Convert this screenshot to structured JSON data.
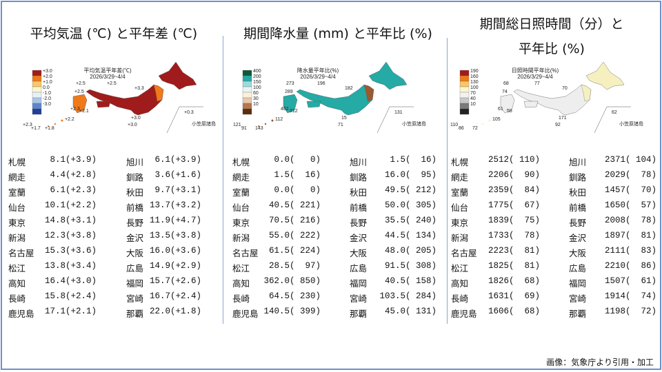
{
  "panels": [
    {
      "title_lines": [
        "平均気温 (℃) と平年差 (℃)"
      ],
      "map": {
        "title": "平均気温平年差(℃)",
        "period": "2026/3/29~4/4",
        "legend": [
          {
            "label": "+3.0",
            "color": "#a01c1c"
          },
          {
            "label": "+2.0",
            "color": "#ef7a1a"
          },
          {
            "label": "+1.0",
            "color": "#f7c86a"
          },
          {
            "label": "0.0",
            "color": "#fbf5cc"
          },
          {
            "label": "-1.0",
            "color": "#e6f0fa"
          },
          {
            "label": "-2.0",
            "color": "#a9c6ea"
          },
          {
            "label": "-3.0",
            "color": "#5b86cf"
          },
          {
            "label": "",
            "color": "#1f3f9a"
          }
        ],
        "main_color": "#a01c1c",
        "accent_color": "#ef7a1a",
        "station_labels": [
          "+2.5",
          "+2.5",
          "+3.3",
          "+2.5",
          "+2.3",
          "+2.1",
          "+2.2",
          "+3.0",
          "+3.0",
          "+2.3",
          "+1.7",
          "+1.8",
          "+0.3"
        ],
        "islands_label": "小笠原諸島"
      },
      "rows": [
        {
          "left": {
            "name": "札幌",
            "value": " 8.1(+3.9)"
          },
          "right": {
            "name": "旭川",
            "value": " 6.1(+3.9)"
          }
        },
        {
          "left": {
            "name": "網走",
            "value": " 4.4(+2.8)"
          },
          "right": {
            "name": "釧路",
            "value": " 3.6(+1.6)"
          }
        },
        {
          "left": {
            "name": "室蘭",
            "value": " 6.1(+2.3)"
          },
          "right": {
            "name": "秋田",
            "value": " 9.7(+3.1)"
          }
        },
        {
          "left": {
            "name": "仙台",
            "value": "10.1(+2.2)"
          },
          "right": {
            "name": "前橋",
            "value": "13.7(+3.2)"
          }
        },
        {
          "left": {
            "name": "東京",
            "value": "14.8(+3.1)"
          },
          "right": {
            "name": "長野",
            "value": "11.9(+4.7)"
          }
        },
        {
          "left": {
            "name": "新潟",
            "value": "12.3(+3.8)"
          },
          "right": {
            "name": "金沢",
            "value": "13.5(+3.8)"
          }
        },
        {
          "left": {
            "name": "名古屋",
            "value": "15.3(+3.6)"
          },
          "right": {
            "name": "大阪",
            "value": "16.0(+3.6)"
          }
        },
        {
          "left": {
            "name": "松江",
            "value": "13.8(+3.4)"
          },
          "right": {
            "name": "広島",
            "value": "14.9(+2.9)"
          }
        },
        {
          "left": {
            "name": "高知",
            "value": "16.4(+3.0)"
          },
          "right": {
            "name": "福岡",
            "value": "15.7(+2.6)"
          }
        },
        {
          "left": {
            "name": "長崎",
            "value": "15.8(+2.4)"
          },
          "right": {
            "name": "宮崎",
            "value": "16.7(+2.4)"
          }
        },
        {
          "left": {
            "name": "鹿児島",
            "value": "17.1(+2.1)"
          },
          "right": {
            "name": "那覇",
            "value": "22.0(+1.8)"
          }
        }
      ]
    },
    {
      "title_lines": [
        "期間降水量 (mm) と平年比 (%)"
      ],
      "map": {
        "title": "降水量平年比(%)",
        "period": "2026/3/29~4/4",
        "legend": [
          {
            "label": "400",
            "color": "#0d5a36"
          },
          {
            "label": "200",
            "color": "#25aaa5"
          },
          {
            "label": "150",
            "color": "#9fdada"
          },
          {
            "label": "100",
            "color": "#e6f4f4"
          },
          {
            "label": "60",
            "color": "#fbf1d6"
          },
          {
            "label": "30",
            "color": "#e8c8ae"
          },
          {
            "label": "10",
            "color": "#b8764a"
          },
          {
            "label": "",
            "color": "#5a2d10"
          }
        ],
        "main_color": "#25aaa5",
        "accent_color": "#9a5a30",
        "station_labels": [
          "273",
          "196",
          "182",
          "289",
          "482",
          "312",
          "112",
          "15",
          "71",
          "121",
          "91",
          "143",
          "131"
        ],
        "islands_label": "小笠原諸島"
      },
      "rows": [
        {
          "left": {
            "name": "札幌",
            "value": "  0.0(   0)"
          },
          "right": {
            "name": "旭川",
            "value": "  1.5(  16)"
          }
        },
        {
          "left": {
            "name": "網走",
            "value": "  1.5(  16)"
          },
          "right": {
            "name": "釧路",
            "value": " 16.0(  95)"
          }
        },
        {
          "left": {
            "name": "室蘭",
            "value": "  0.0(   0)"
          },
          "right": {
            "name": "秋田",
            "value": " 49.5( 212)"
          }
        },
        {
          "left": {
            "name": "仙台",
            "value": " 40.5( 221)"
          },
          "right": {
            "name": "前橋",
            "value": " 50.0( 305)"
          }
        },
        {
          "left": {
            "name": "東京",
            "value": " 70.5( 216)"
          },
          "right": {
            "name": "長野",
            "value": " 35.5( 240)"
          }
        },
        {
          "left": {
            "name": "新潟",
            "value": " 55.0( 222)"
          },
          "right": {
            "name": "金沢",
            "value": " 44.5( 134)"
          }
        },
        {
          "left": {
            "name": "名古屋",
            "value": " 61.5( 224)"
          },
          "right": {
            "name": "大阪",
            "value": " 48.0( 205)"
          }
        },
        {
          "left": {
            "name": "松江",
            "value": " 28.5(  97)"
          },
          "right": {
            "name": "広島",
            "value": " 91.5( 308)"
          }
        },
        {
          "left": {
            "name": "高知",
            "value": "362.0( 850)"
          },
          "right": {
            "name": "福岡",
            "value": " 40.5( 158)"
          }
        },
        {
          "left": {
            "name": "長崎",
            "value": " 64.5( 230)"
          },
          "right": {
            "name": "宮崎",
            "value": "103.5( 284)"
          }
        },
        {
          "left": {
            "name": "鹿児島",
            "value": "140.5( 399)"
          },
          "right": {
            "name": "那覇",
            "value": " 45.0( 131)"
          }
        }
      ]
    },
    {
      "title_lines": [
        "期間総日照時間（分）と",
        "平年比 (%)"
      ],
      "map": {
        "title": "日照時間平年比(%)",
        "period": "2026/3/29~4/4",
        "legend": [
          {
            "label": "190",
            "color": "#a01c1c"
          },
          {
            "label": "160",
            "color": "#ef7a1a"
          },
          {
            "label": "130",
            "color": "#f7c86a"
          },
          {
            "label": "100",
            "color": "#fbf5cc"
          },
          {
            "label": "70",
            "color": "#f2f2f2"
          },
          {
            "label": "40",
            "color": "#c8c8c8"
          },
          {
            "label": "10",
            "color": "#7a7a7a"
          },
          {
            "label": "",
            "color": "#222222"
          }
        ],
        "main_color": "#eeeeee",
        "accent_color": "#f6f0c0",
        "station_labels": [
          "68",
          "77",
          "70",
          "74",
          "61",
          "58",
          "105",
          "171",
          "92",
          "110",
          "86",
          "72",
          "62"
        ],
        "islands_label": "小笠原諸島"
      },
      "rows": [
        {
          "left": {
            "name": "札幌",
            "value": "2512( 110)"
          },
          "right": {
            "name": "旭川",
            "value": "2371( 104)"
          }
        },
        {
          "left": {
            "name": "網走",
            "value": "2206(  90)"
          },
          "right": {
            "name": "釧路",
            "value": "2029(  78)"
          }
        },
        {
          "left": {
            "name": "室蘭",
            "value": "2359(  84)"
          },
          "right": {
            "name": "秋田",
            "value": "1457(  70)"
          }
        },
        {
          "left": {
            "name": "仙台",
            "value": "1775(  67)"
          },
          "right": {
            "name": "前橋",
            "value": "1650(  57)"
          }
        },
        {
          "left": {
            "name": "東京",
            "value": "1839(  75)"
          },
          "right": {
            "name": "長野",
            "value": "2008(  78)"
          }
        },
        {
          "left": {
            "name": "新潟",
            "value": "1733(  78)"
          },
          "right": {
            "name": "金沢",
            "value": "1897(  81)"
          }
        },
        {
          "left": {
            "name": "名古屋",
            "value": "2223(  81)"
          },
          "right": {
            "name": "大阪",
            "value": "2111(  83)"
          }
        },
        {
          "left": {
            "name": "松江",
            "value": "1825(  81)"
          },
          "right": {
            "name": "広島",
            "value": "2210(  86)"
          }
        },
        {
          "left": {
            "name": "高知",
            "value": "1826(  68)"
          },
          "right": {
            "name": "福岡",
            "value": "1507(  61)"
          }
        },
        {
          "left": {
            "name": "長崎",
            "value": "1631(  69)"
          },
          "right": {
            "name": "宮崎",
            "value": "1914(  74)"
          }
        },
        {
          "left": {
            "name": "鹿児島",
            "value": "1606(  68)"
          },
          "right": {
            "name": "那覇",
            "value": "1198(  72)"
          }
        }
      ]
    }
  ],
  "credit": "画像：気象庁より引用・加工"
}
